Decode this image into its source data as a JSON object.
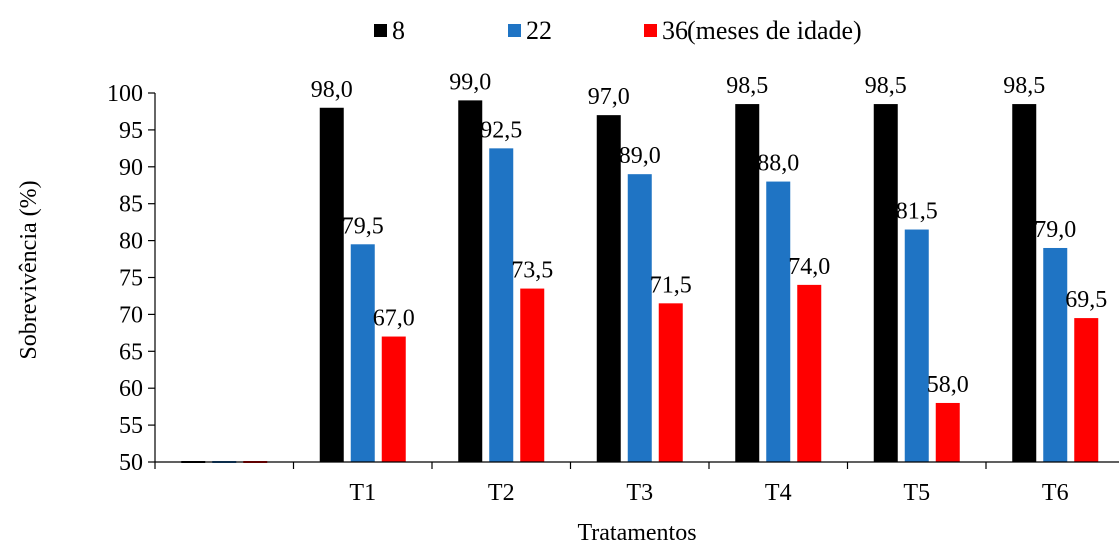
{
  "chart_data": {
    "type": "bar",
    "title": "",
    "xlabel": "Tratamentos",
    "ylabel": "Sobrevivência (%)",
    "ylim": [
      50,
      100
    ],
    "yticks": [
      50,
      55,
      60,
      65,
      70,
      75,
      80,
      85,
      90,
      95,
      100
    ],
    "grid": false,
    "legend_position": "top",
    "legend_suffix": "(meses de idade)",
    "categories": [
      "",
      "T1",
      "T2",
      "T3",
      "T4",
      "T5",
      "T6"
    ],
    "series": [
      {
        "name": "8",
        "color": "#000000",
        "values": [
          50,
          98.0,
          99.0,
          97.0,
          98.5,
          98.5,
          98.5
        ],
        "labels": [
          "",
          "98,0",
          "99,0",
          "97,0",
          "98,5",
          "98,5",
          "98,5"
        ]
      },
      {
        "name": "22",
        "color": "#1f74c4",
        "values": [
          50,
          79.5,
          92.5,
          89.0,
          88.0,
          81.5,
          79.0
        ],
        "labels": [
          "",
          "79,5",
          "92,5",
          "89,0",
          "88,0",
          "81,5",
          "79,0"
        ]
      },
      {
        "name": "36",
        "color": "#ff0000",
        "values": [
          50,
          67.0,
          73.5,
          71.5,
          74.0,
          58.0,
          69.5
        ],
        "labels": [
          "",
          "67,0",
          "73,5",
          "71,5",
          "74,0",
          "58,0",
          "69,5"
        ]
      }
    ]
  }
}
